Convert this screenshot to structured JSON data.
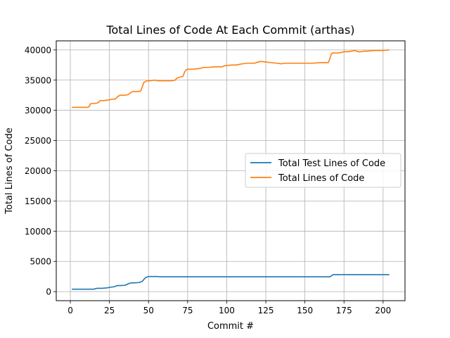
{
  "chart_data": {
    "type": "line",
    "title": "Total Lines of Code At Each Commit (arthas)",
    "xlabel": "Commit #",
    "ylabel": "Total Lines of Code",
    "xlim": [
      -9,
      214
    ],
    "ylim": [
      -1500,
      41500
    ],
    "xticks": [
      0,
      25,
      50,
      75,
      100,
      125,
      150,
      175,
      200
    ],
    "yticks": [
      0,
      5000,
      10000,
      15000,
      20000,
      25000,
      30000,
      35000,
      40000
    ],
    "grid": true,
    "legend_position": "center-right",
    "series": [
      {
        "name": "Total Test Lines of Code",
        "color": "#1f77b4",
        "x": [
          1,
          10,
          15,
          17,
          20,
          23,
          25,
          28,
          30,
          32,
          35,
          37,
          39,
          41,
          44,
          46,
          48,
          50,
          52,
          56,
          57,
          60,
          80,
          100,
          120,
          140,
          160,
          166,
          168,
          170,
          190,
          204
        ],
        "y": [
          400,
          400,
          400,
          550,
          550,
          600,
          700,
          800,
          1000,
          1000,
          1050,
          1300,
          1450,
          1450,
          1500,
          1700,
          2300,
          2500,
          2500,
          2500,
          2450,
          2450,
          2450,
          2450,
          2450,
          2450,
          2450,
          2450,
          2800,
          2800,
          2800,
          2800
        ]
      },
      {
        "name": "Total Lines of Code",
        "color": "#ff7f0e",
        "x": [
          1,
          8,
          11,
          12,
          13,
          17,
          18,
          19,
          21,
          24,
          26,
          29,
          30,
          31,
          32,
          35,
          37,
          38,
          39,
          40,
          43,
          45,
          46,
          47,
          49,
          51,
          54,
          56,
          60,
          65,
          67,
          68,
          70,
          72,
          73,
          74,
          75,
          78,
          82,
          84,
          85,
          88,
          92,
          95,
          97,
          98,
          99,
          100,
          103,
          106,
          108,
          110,
          113,
          118,
          120,
          122,
          125,
          128,
          132,
          135,
          137,
          140,
          145,
          150,
          155,
          160,
          165,
          166,
          167,
          168,
          172,
          175,
          178,
          180,
          182,
          184,
          186,
          188,
          190,
          195,
          200,
          204
        ],
        "y": [
          30500,
          30500,
          30500,
          30600,
          31100,
          31200,
          31300,
          31600,
          31600,
          31700,
          31800,
          31900,
          32200,
          32400,
          32500,
          32500,
          32600,
          32800,
          33000,
          33100,
          33100,
          33200,
          33900,
          34600,
          34900,
          34900,
          35000,
          34900,
          34900,
          34900,
          35000,
          35300,
          35500,
          35600,
          36300,
          36700,
          36800,
          36800,
          36900,
          37000,
          37100,
          37100,
          37200,
          37200,
          37200,
          37300,
          37400,
          37400,
          37500,
          37500,
          37600,
          37700,
          37800,
          37800,
          38000,
          38100,
          38000,
          37900,
          37800,
          37700,
          37800,
          37800,
          37800,
          37800,
          37800,
          37900,
          37900,
          38600,
          39400,
          39500,
          39500,
          39700,
          39700,
          39800,
          39900,
          39700,
          39700,
          39800,
          39800,
          39900,
          39900,
          40000
        ]
      }
    ]
  }
}
